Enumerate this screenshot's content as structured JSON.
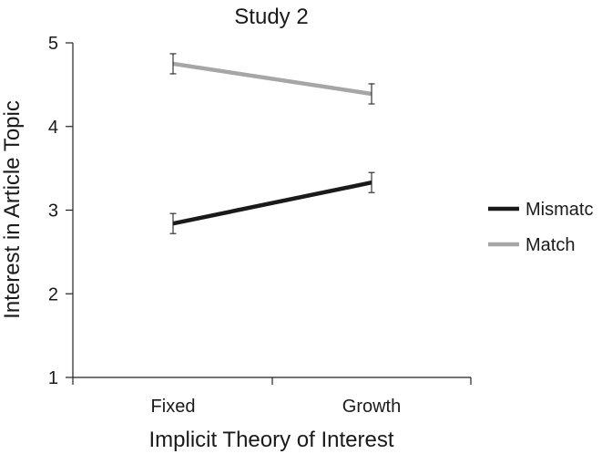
{
  "chart_data": {
    "type": "line",
    "title": "Study 2",
    "xlabel": "Implicit Theory of Interest",
    "ylabel": "Interest in Article Topic",
    "categories": [
      "Fixed",
      "Growth"
    ],
    "ylim": [
      1,
      5
    ],
    "yticks": [
      1,
      2,
      3,
      4,
      5
    ],
    "grid": false,
    "legend_position": "right",
    "series": [
      {
        "name": "Mismatc",
        "color": "#1a1a1a",
        "values": [
          2.84,
          3.33
        ],
        "error": [
          0.12,
          0.12
        ]
      },
      {
        "name": "Match",
        "color": "#a6a6a6",
        "values": [
          4.75,
          4.39
        ],
        "error": [
          0.12,
          0.12
        ]
      }
    ]
  }
}
